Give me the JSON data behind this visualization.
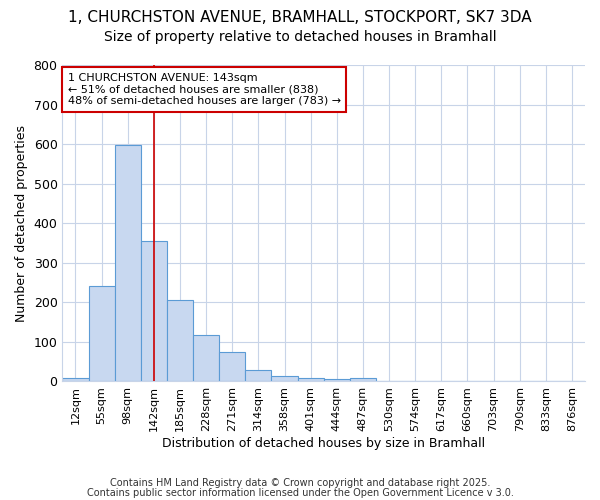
{
  "title1": "1, CHURCHSTON AVENUE, BRAMHALL, STOCKPORT, SK7 3DA",
  "title2": "Size of property relative to detached houses in Bramhall",
  "xlabel": "Distribution of detached houses by size in Bramhall",
  "ylabel": "Number of detached properties",
  "categories": [
    "12sqm",
    "55sqm",
    "98sqm",
    "142sqm",
    "185sqm",
    "228sqm",
    "271sqm",
    "314sqm",
    "358sqm",
    "401sqm",
    "444sqm",
    "487sqm",
    "530sqm",
    "574sqm",
    "617sqm",
    "660sqm",
    "703sqm",
    "790sqm",
    "833sqm",
    "876sqm"
  ],
  "values": [
    8,
    242,
    598,
    355,
    207,
    117,
    74,
    28,
    13,
    9,
    6,
    8,
    0,
    0,
    0,
    0,
    0,
    0,
    0,
    0
  ],
  "bar_color": "#c8d8f0",
  "bar_edge_color": "#5b9bd5",
  "bar_edge_width": 0.8,
  "ylim": [
    0,
    800
  ],
  "yticks": [
    0,
    100,
    200,
    300,
    400,
    500,
    600,
    700,
    800
  ],
  "red_line_x": 3.0,
  "annotation_text": "1 CHURCHSTON AVENUE: 143sqm\n← 51% of detached houses are smaller (838)\n48% of semi-detached houses are larger (783) →",
  "annotation_box_color": "#ffffff",
  "annotation_box_edge": "#cc0000",
  "footer_line1": "Contains HM Land Registry data © Crown copyright and database right 2025.",
  "footer_line2": "Contains public sector information licensed under the Open Government Licence v 3.0.",
  "background_color": "#ffffff",
  "plot_bg_color": "#ffffff",
  "grid_color": "#c8d4e8",
  "title_fontsize": 11,
  "subtitle_fontsize": 10,
  "tick_fontsize": 8,
  "label_fontsize": 9,
  "footer_fontsize": 7
}
